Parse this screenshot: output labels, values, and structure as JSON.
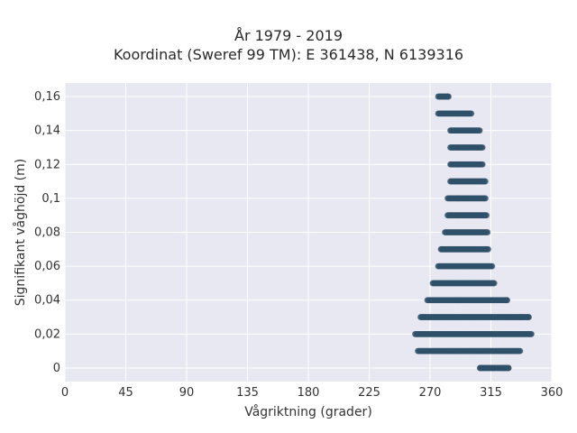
{
  "chart_data": {
    "type": "scatter",
    "title_line1": "År 1979 - 2019",
    "title_line2": "Koordinat (Sweref 99 TM): E 361438, N 6139316",
    "xlabel": "Vågriktning (grader)",
    "ylabel": "Signifikant våghöjd (m)",
    "xlim": [
      0,
      360
    ],
    "ylim": [
      -0.008,
      0.168
    ],
    "xticks": [
      0,
      45,
      90,
      135,
      180,
      225,
      270,
      315,
      360
    ],
    "xtick_labels": [
      "0",
      "45",
      "90",
      "135",
      "180",
      "225",
      "270",
      "315",
      "360"
    ],
    "yticks": [
      0,
      0.02,
      0.04,
      0.06,
      0.08,
      0.1,
      0.12,
      0.14,
      0.16
    ],
    "ytick_labels": [
      "0",
      "0,02",
      "0,04",
      "0,06",
      "0,08",
      "0,1",
      "0,12",
      "0,14",
      "0,16"
    ],
    "grid": true,
    "legend": "none",
    "colors": {
      "marker": "#2f5068",
      "plot_bg": "#e8e8f2",
      "grid": "#ffffff"
    },
    "bands": [
      {
        "y": 0.0,
        "x_min": 307,
        "x_max": 328,
        "sparse": [
          307,
          309,
          316,
          323,
          325,
          328
        ]
      },
      {
        "y": 0.01,
        "x_min": 261,
        "x_max": 337,
        "sparse": []
      },
      {
        "y": 0.02,
        "x_min": 259,
        "x_max": 345,
        "sparse": [
          345
        ]
      },
      {
        "y": 0.03,
        "x_min": 263,
        "x_max": 343,
        "sparse": [
          337,
          343
        ]
      },
      {
        "y": 0.04,
        "x_min": 268,
        "x_max": 327,
        "sparse": [
          327
        ]
      },
      {
        "y": 0.05,
        "x_min": 272,
        "x_max": 318,
        "sparse": []
      },
      {
        "y": 0.06,
        "x_min": 276,
        "x_max": 316,
        "sparse": []
      },
      {
        "y": 0.07,
        "x_min": 278,
        "x_max": 313,
        "sparse": []
      },
      {
        "y": 0.08,
        "x_min": 281,
        "x_max": 313,
        "sparse": []
      },
      {
        "y": 0.09,
        "x_min": 283,
        "x_max": 312,
        "sparse": []
      },
      {
        "y": 0.1,
        "x_min": 283,
        "x_max": 311,
        "sparse": []
      },
      {
        "y": 0.11,
        "x_min": 285,
        "x_max": 311,
        "sparse": []
      },
      {
        "y": 0.12,
        "x_min": 285,
        "x_max": 309,
        "sparse": []
      },
      {
        "y": 0.13,
        "x_min": 285,
        "x_max": 309,
        "sparse": []
      },
      {
        "y": 0.14,
        "x_min": 285,
        "x_max": 307,
        "sparse": []
      },
      {
        "y": 0.15,
        "x_min": 276,
        "x_max": 301,
        "sparse": []
      },
      {
        "y": 0.16,
        "x_min": 276,
        "x_max": 284,
        "sparse": [
          283
        ]
      }
    ]
  }
}
